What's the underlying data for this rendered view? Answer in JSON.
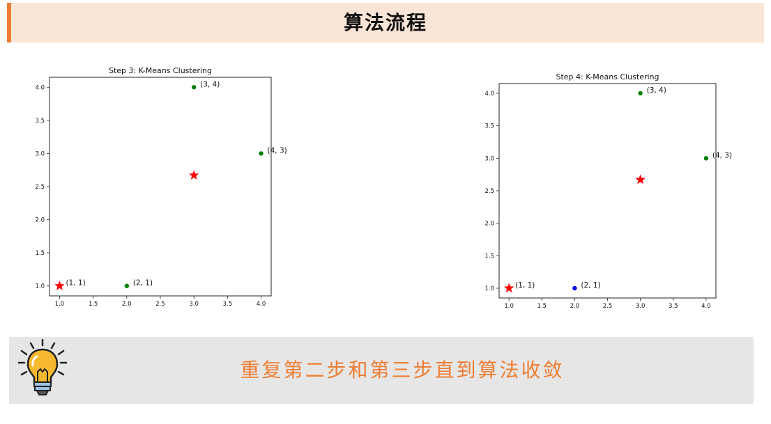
{
  "header": {
    "title": "算法流程"
  },
  "banner": {
    "message": "重复第二步和第三步直到算法收敛",
    "icon": "lightbulb-icon"
  },
  "colors": {
    "accent": "#ed7d31",
    "header_bg": "#fbe5d6",
    "banner_bg": "#e7e6e6",
    "green": "#008000",
    "blue": "#0000ff",
    "red": "#ff0000"
  },
  "chart_data": [
    {
      "type": "scatter",
      "title": "Step 3: K-Means Clustering",
      "xlim": [
        0.85,
        4.15
      ],
      "ylim": [
        0.85,
        4.15
      ],
      "xticks": [
        "1.0",
        "1.5",
        "2.0",
        "2.5",
        "3.0",
        "3.5",
        "4.0"
      ],
      "yticks": [
        "1.0",
        "1.5",
        "2.0",
        "2.5",
        "3.0",
        "3.5",
        "4.0"
      ],
      "points": [
        {
          "x": 1,
          "y": 1,
          "label": "(1, 1)",
          "color": "#008000"
        },
        {
          "x": 2,
          "y": 1,
          "label": "(2, 1)",
          "color": "#008000"
        },
        {
          "x": 3,
          "y": 4,
          "label": "(3, 4)",
          "color": "#008000"
        },
        {
          "x": 4,
          "y": 3,
          "label": "(4, 3)",
          "color": "#008000"
        }
      ],
      "centroids": [
        {
          "x": 1,
          "y": 1,
          "color": "#ff0000"
        },
        {
          "x": 3,
          "y": 2.67,
          "color": "#ff0000"
        }
      ]
    },
    {
      "type": "scatter",
      "title": "Step 4: K-Means Clustering",
      "xlim": [
        0.85,
        4.15
      ],
      "ylim": [
        0.85,
        4.15
      ],
      "xticks": [
        "1.0",
        "1.5",
        "2.0",
        "2.5",
        "3.0",
        "3.5",
        "4.0"
      ],
      "yticks": [
        "1.0",
        "1.5",
        "2.0",
        "2.5",
        "3.0",
        "3.5",
        "4.0"
      ],
      "points": [
        {
          "x": 1,
          "y": 1,
          "label": "(1, 1)",
          "color": "#0000ff"
        },
        {
          "x": 2,
          "y": 1,
          "label": "(2, 1)",
          "color": "#0000ff"
        },
        {
          "x": 3,
          "y": 4,
          "label": "(3, 4)",
          "color": "#008000"
        },
        {
          "x": 4,
          "y": 3,
          "label": "(4, 3)",
          "color": "#008000"
        }
      ],
      "centroids": [
        {
          "x": 1,
          "y": 1,
          "color": "#ff0000"
        },
        {
          "x": 3,
          "y": 2.67,
          "color": "#ff0000"
        }
      ]
    }
  ]
}
